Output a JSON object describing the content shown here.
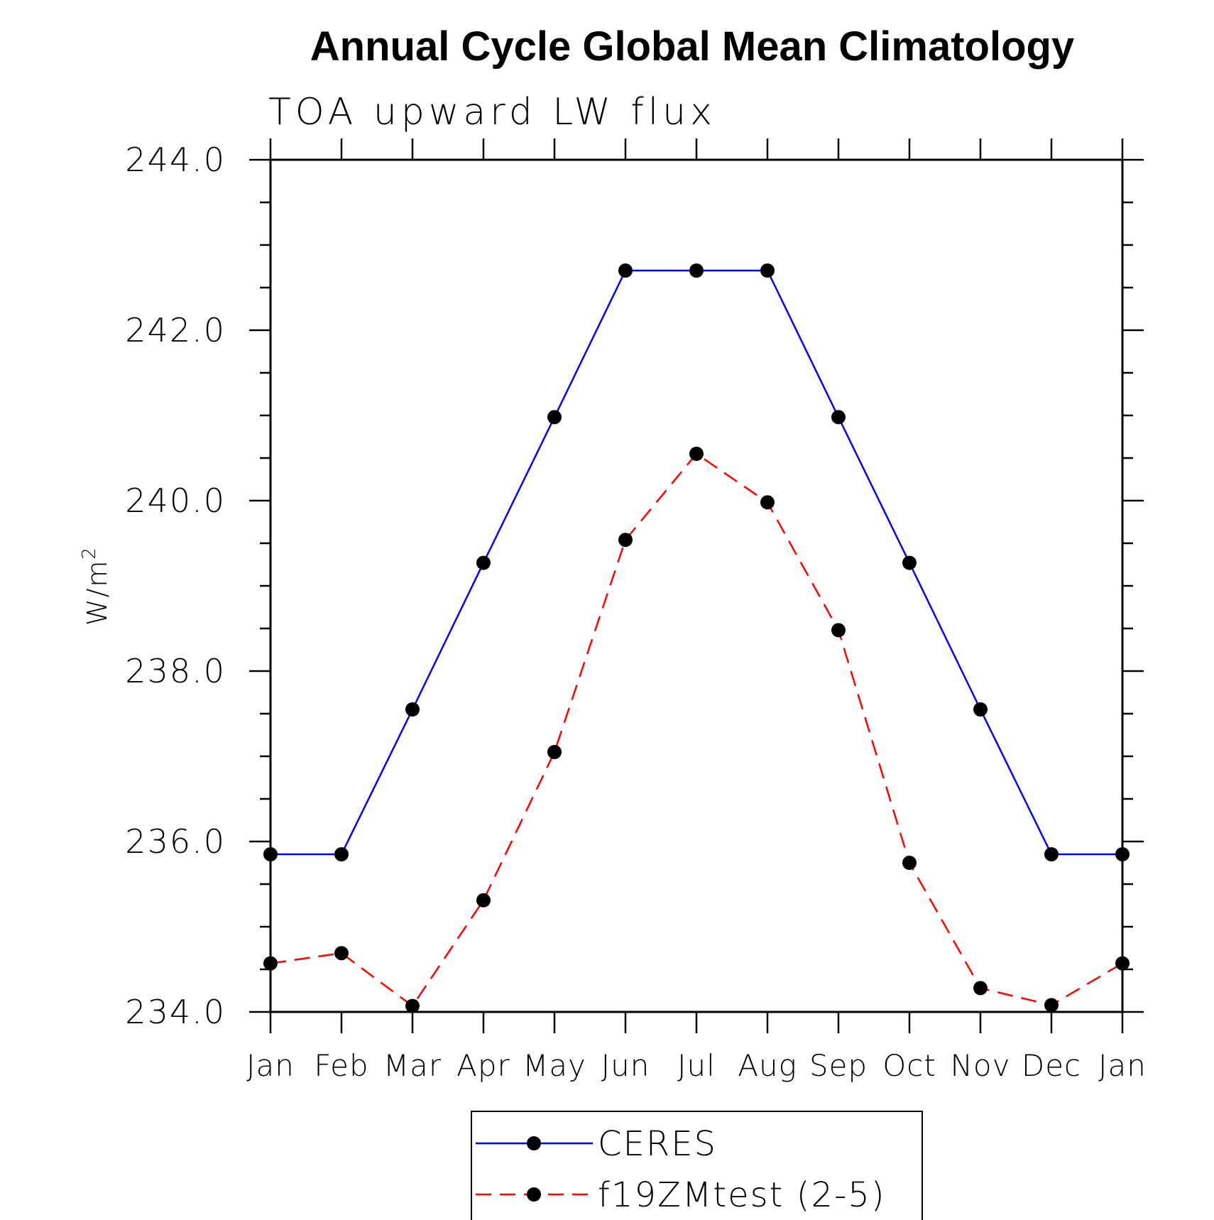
{
  "chart_data": {
    "type": "line",
    "title": "Annual Cycle Global Mean Climatology",
    "subtitle": "TOA upward LW flux",
    "ylabel": "W/m",
    "ylabel_sup": "2",
    "xlabel": "",
    "categories": [
      "Jan",
      "Feb",
      "Mar",
      "Apr",
      "May",
      "Jun",
      "Jul",
      "Aug",
      "Sep",
      "Oct",
      "Nov",
      "Dec",
      "Jan"
    ],
    "ylim": [
      234.0,
      244.0
    ],
    "yticks": [
      "234.0",
      "236.0",
      "238.0",
      "240.0",
      "242.0",
      "244.0"
    ],
    "grid": false,
    "legend_position": "bottom-center",
    "series": [
      {
        "name": "CERES",
        "color": "#0000ff",
        "linestyle": "solid",
        "marker": "filled-circle",
        "values": [
          235.85,
          235.85,
          237.55,
          239.27,
          240.98,
          242.7,
          242.7,
          242.7,
          240.98,
          239.27,
          237.55,
          235.85,
          235.85
        ]
      },
      {
        "name": "f19ZMtest (2-5)",
        "color": "#ff0000",
        "linestyle": "dashed",
        "marker": "filled-circle",
        "values": [
          234.57,
          234.69,
          234.07,
          235.31,
          237.05,
          239.54,
          240.55,
          239.98,
          238.48,
          235.75,
          234.28,
          234.08,
          234.57
        ]
      }
    ]
  }
}
